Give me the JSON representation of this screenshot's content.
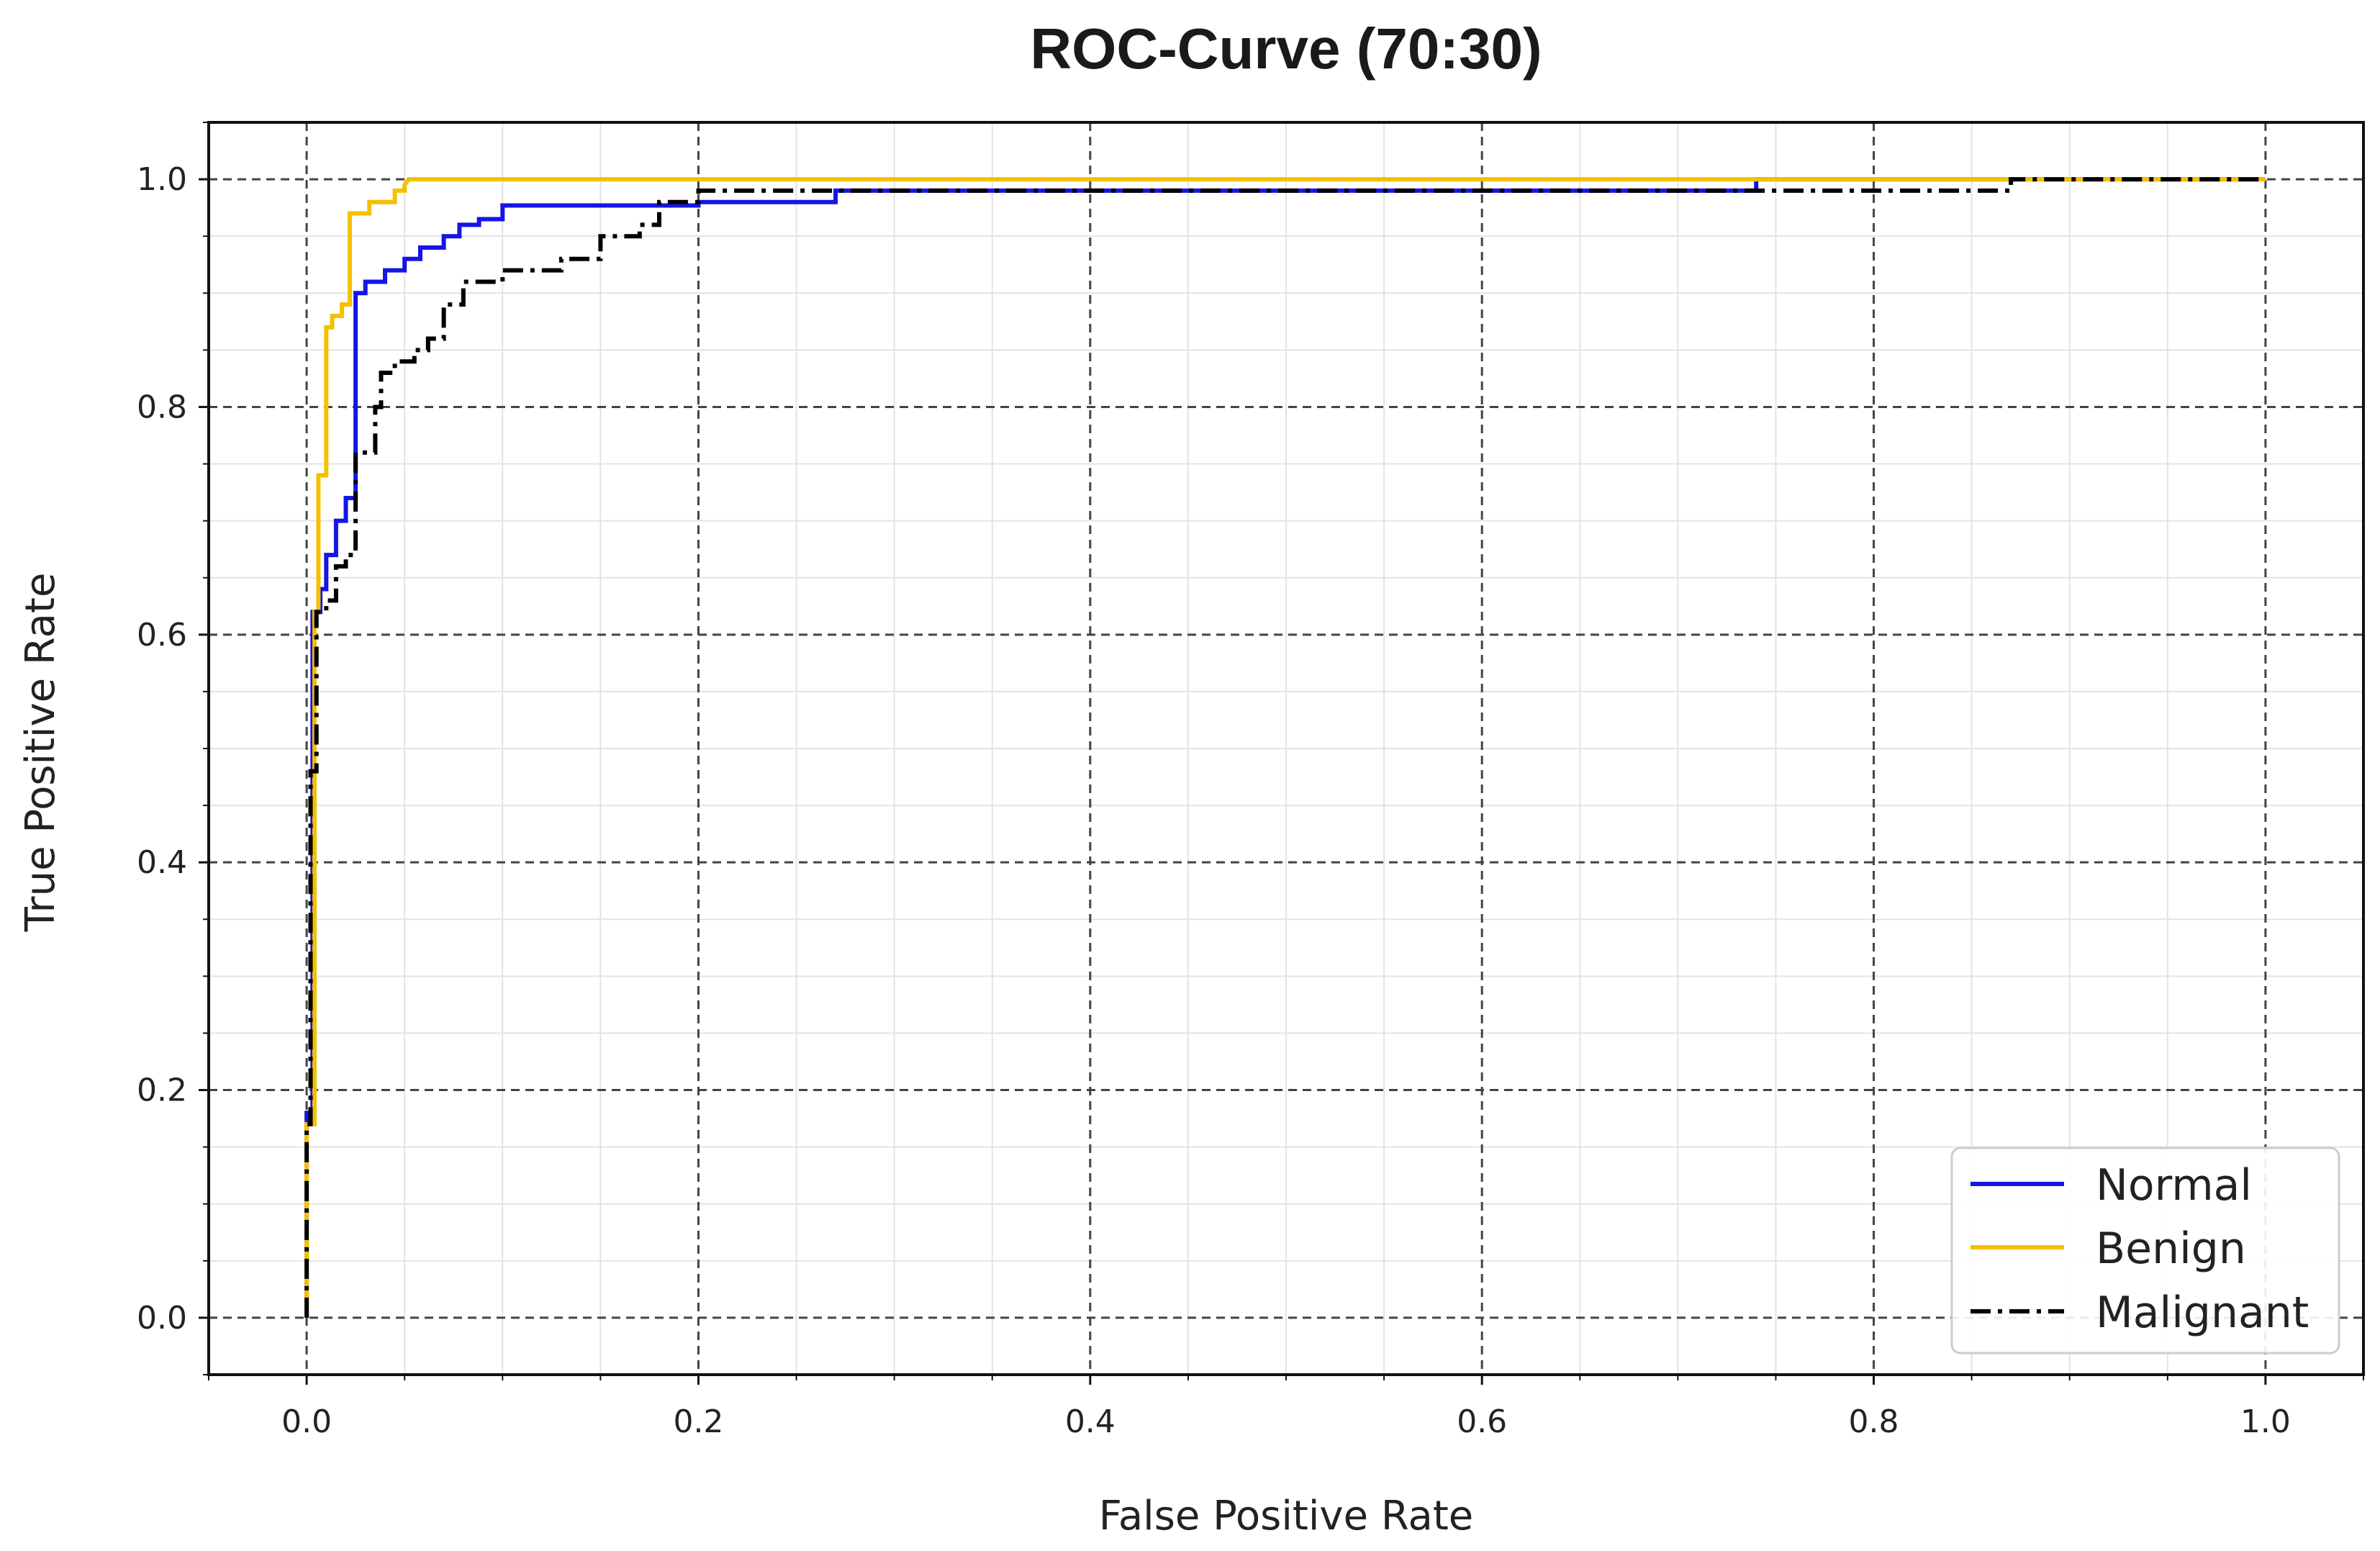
{
  "chart_data": {
    "type": "line",
    "title": "ROC-Curve (70:30)",
    "xlabel": "False Positive Rate",
    "ylabel": "True Positive Rate",
    "xlim": [
      -0.05,
      1.05
    ],
    "ylim": [
      -0.05,
      1.05
    ],
    "xticks": [
      0.0,
      0.2,
      0.4,
      0.6,
      0.8,
      1.0
    ],
    "yticks": [
      0.0,
      0.2,
      0.4,
      0.6,
      0.8,
      1.0
    ],
    "xtick_labels": [
      "0.0",
      "0.2",
      "0.4",
      "0.6",
      "0.8",
      "1.0"
    ],
    "ytick_labels": [
      "0.0",
      "0.2",
      "0.4",
      "0.6",
      "0.8",
      "1.0"
    ],
    "grid": true,
    "minor_grid": true,
    "legend_position": "lower-right",
    "series": [
      {
        "name": "Normal",
        "color": "#1515e6",
        "style": "solid",
        "x": [
          0.0,
          0.0,
          0.003,
          0.003,
          0.007,
          0.007,
          0.01,
          0.01,
          0.015,
          0.015,
          0.02,
          0.02,
          0.025,
          0.025,
          0.03,
          0.03,
          0.04,
          0.04,
          0.05,
          0.05,
          0.058,
          0.058,
          0.07,
          0.07,
          0.078,
          0.078,
          0.088,
          0.088,
          0.1,
          0.1,
          0.15,
          0.15,
          0.2,
          0.2,
          0.27,
          0.27,
          0.5,
          0.74,
          0.74,
          0.87,
          1.0
        ],
        "y": [
          0.0,
          0.18,
          0.18,
          0.62,
          0.62,
          0.64,
          0.64,
          0.67,
          0.67,
          0.7,
          0.7,
          0.72,
          0.72,
          0.9,
          0.9,
          0.91,
          0.91,
          0.92,
          0.92,
          0.93,
          0.93,
          0.94,
          0.94,
          0.95,
          0.95,
          0.96,
          0.96,
          0.965,
          0.965,
          0.977,
          0.977,
          0.977,
          0.977,
          0.98,
          0.98,
          0.99,
          0.99,
          0.99,
          1.0,
          1.0,
          1.0
        ]
      },
      {
        "name": "Benign",
        "color": "#f5c000",
        "style": "solid",
        "x": [
          0.0,
          0.0,
          0.004,
          0.004,
          0.006,
          0.006,
          0.01,
          0.01,
          0.013,
          0.013,
          0.018,
          0.018,
          0.022,
          0.022,
          0.032,
          0.032,
          0.045,
          0.045,
          0.05,
          0.05,
          0.052,
          1.0
        ],
        "y": [
          0.0,
          0.17,
          0.17,
          0.62,
          0.62,
          0.74,
          0.74,
          0.87,
          0.87,
          0.88,
          0.88,
          0.89,
          0.89,
          0.97,
          0.97,
          0.98,
          0.98,
          0.99,
          0.99,
          0.995,
          1.0,
          1.0
        ]
      },
      {
        "name": "Malignant",
        "color": "#000000",
        "style": "dashdot",
        "x": [
          0.0,
          0.0,
          0.002,
          0.002,
          0.005,
          0.005,
          0.01,
          0.01,
          0.015,
          0.015,
          0.02,
          0.02,
          0.025,
          0.025,
          0.035,
          0.035,
          0.038,
          0.038,
          0.045,
          0.045,
          0.055,
          0.055,
          0.062,
          0.062,
          0.07,
          0.07,
          0.08,
          0.08,
          0.1,
          0.1,
          0.13,
          0.13,
          0.15,
          0.15,
          0.17,
          0.17,
          0.18,
          0.18,
          0.2,
          0.2,
          0.87,
          0.87,
          1.0
        ],
        "y": [
          0.0,
          0.17,
          0.17,
          0.48,
          0.48,
          0.62,
          0.62,
          0.63,
          0.63,
          0.66,
          0.66,
          0.67,
          0.67,
          0.76,
          0.76,
          0.8,
          0.8,
          0.83,
          0.83,
          0.84,
          0.84,
          0.85,
          0.85,
          0.86,
          0.86,
          0.89,
          0.89,
          0.91,
          0.91,
          0.92,
          0.92,
          0.93,
          0.93,
          0.95,
          0.95,
          0.96,
          0.96,
          0.98,
          0.98,
          0.99,
          0.99,
          1.0,
          1.0
        ]
      }
    ]
  }
}
